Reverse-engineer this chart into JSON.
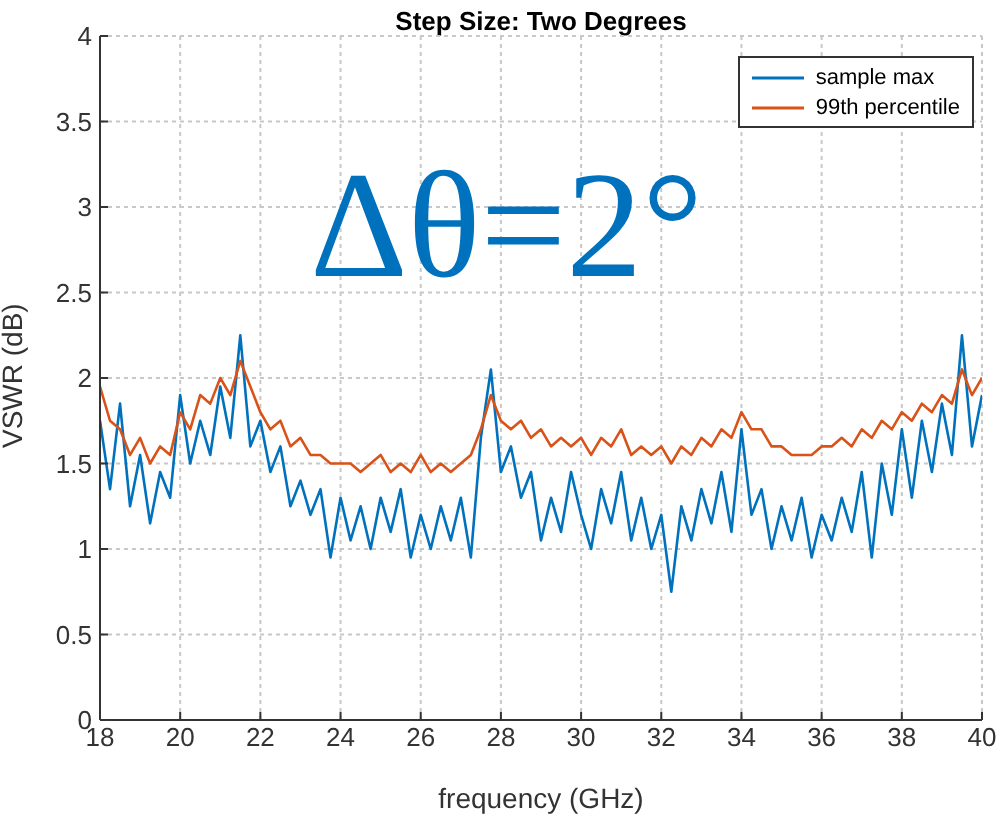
{
  "chart_data": {
    "type": "line",
    "title": "Step Size: Two Degrees",
    "xlabel": "frequency (GHz)",
    "ylabel": "VSWR (dB)",
    "annotations": [
      "Δθ=2°"
    ],
    "x": [
      18,
      18.25,
      18.5,
      18.75,
      19,
      19.25,
      19.5,
      19.75,
      20,
      20.25,
      20.5,
      20.75,
      21,
      21.25,
      21.5,
      21.75,
      22,
      22.25,
      22.5,
      22.75,
      23,
      23.25,
      23.5,
      23.75,
      24,
      24.25,
      24.5,
      24.75,
      25,
      25.25,
      25.5,
      25.75,
      26,
      26.25,
      26.5,
      26.75,
      27,
      27.25,
      27.5,
      27.75,
      28,
      28.25,
      28.5,
      28.75,
      29,
      29.25,
      29.5,
      29.75,
      30,
      30.25,
      30.5,
      30.75,
      31,
      31.25,
      31.5,
      31.75,
      32,
      32.25,
      32.5,
      32.75,
      33,
      33.25,
      33.5,
      33.75,
      34,
      34.25,
      34.5,
      34.75,
      35,
      35.25,
      35.5,
      35.75,
      36,
      36.25,
      36.5,
      36.75,
      37,
      37.25,
      37.5,
      37.75,
      38,
      38.25,
      38.5,
      38.75,
      39,
      39.25,
      39.5,
      39.75,
      40
    ],
    "series": [
      {
        "name": "sample max",
        "color": "#0072bd",
        "values": [
          1.75,
          1.35,
          1.85,
          1.25,
          1.55,
          1.15,
          1.45,
          1.3,
          1.9,
          1.5,
          1.75,
          1.55,
          1.95,
          1.65,
          2.25,
          1.6,
          1.75,
          1.45,
          1.6,
          1.25,
          1.4,
          1.2,
          1.35,
          0.95,
          1.3,
          1.05,
          1.25,
          1.0,
          1.3,
          1.1,
          1.35,
          0.95,
          1.2,
          1.0,
          1.25,
          1.05,
          1.3,
          0.95,
          1.65,
          2.05,
          1.45,
          1.6,
          1.3,
          1.45,
          1.05,
          1.3,
          1.1,
          1.45,
          1.2,
          1.0,
          1.35,
          1.15,
          1.45,
          1.05,
          1.3,
          1.0,
          1.2,
          0.75,
          1.25,
          1.05,
          1.35,
          1.15,
          1.45,
          1.1,
          1.7,
          1.2,
          1.35,
          1.0,
          1.25,
          1.05,
          1.3,
          0.95,
          1.2,
          1.05,
          1.3,
          1.1,
          1.45,
          0.95,
          1.5,
          1.2,
          1.7,
          1.3,
          1.75,
          1.45,
          1.85,
          1.55,
          2.25,
          1.6,
          1.9
        ]
      },
      {
        "name": "99th percentile",
        "color": "#d95319",
        "values": [
          1.95,
          1.75,
          1.7,
          1.55,
          1.65,
          1.5,
          1.6,
          1.55,
          1.8,
          1.7,
          1.9,
          1.85,
          2.0,
          1.9,
          2.1,
          1.95,
          1.8,
          1.7,
          1.75,
          1.6,
          1.65,
          1.55,
          1.55,
          1.5,
          1.5,
          1.5,
          1.45,
          1.5,
          1.55,
          1.45,
          1.5,
          1.45,
          1.55,
          1.45,
          1.5,
          1.45,
          1.5,
          1.55,
          1.7,
          1.9,
          1.75,
          1.7,
          1.75,
          1.65,
          1.7,
          1.6,
          1.65,
          1.6,
          1.65,
          1.55,
          1.65,
          1.6,
          1.7,
          1.55,
          1.6,
          1.55,
          1.6,
          1.5,
          1.6,
          1.55,
          1.65,
          1.6,
          1.7,
          1.65,
          1.8,
          1.7,
          1.7,
          1.6,
          1.6,
          1.55,
          1.55,
          1.55,
          1.6,
          1.6,
          1.65,
          1.6,
          1.7,
          1.65,
          1.75,
          1.7,
          1.8,
          1.75,
          1.85,
          1.8,
          1.9,
          1.85,
          2.05,
          1.9,
          2.0
        ]
      }
    ],
    "xlim": [
      18,
      40
    ],
    "xticks": [
      18,
      20,
      22,
      24,
      26,
      28,
      30,
      32,
      34,
      36,
      38,
      40
    ],
    "ylim": [
      0,
      4
    ],
    "yticks": [
      0,
      0.5,
      1,
      1.5,
      2,
      2.5,
      3,
      3.5,
      4
    ],
    "grid": true,
    "legend": "top right",
    "marker": "none",
    "line_style": "solid"
  }
}
